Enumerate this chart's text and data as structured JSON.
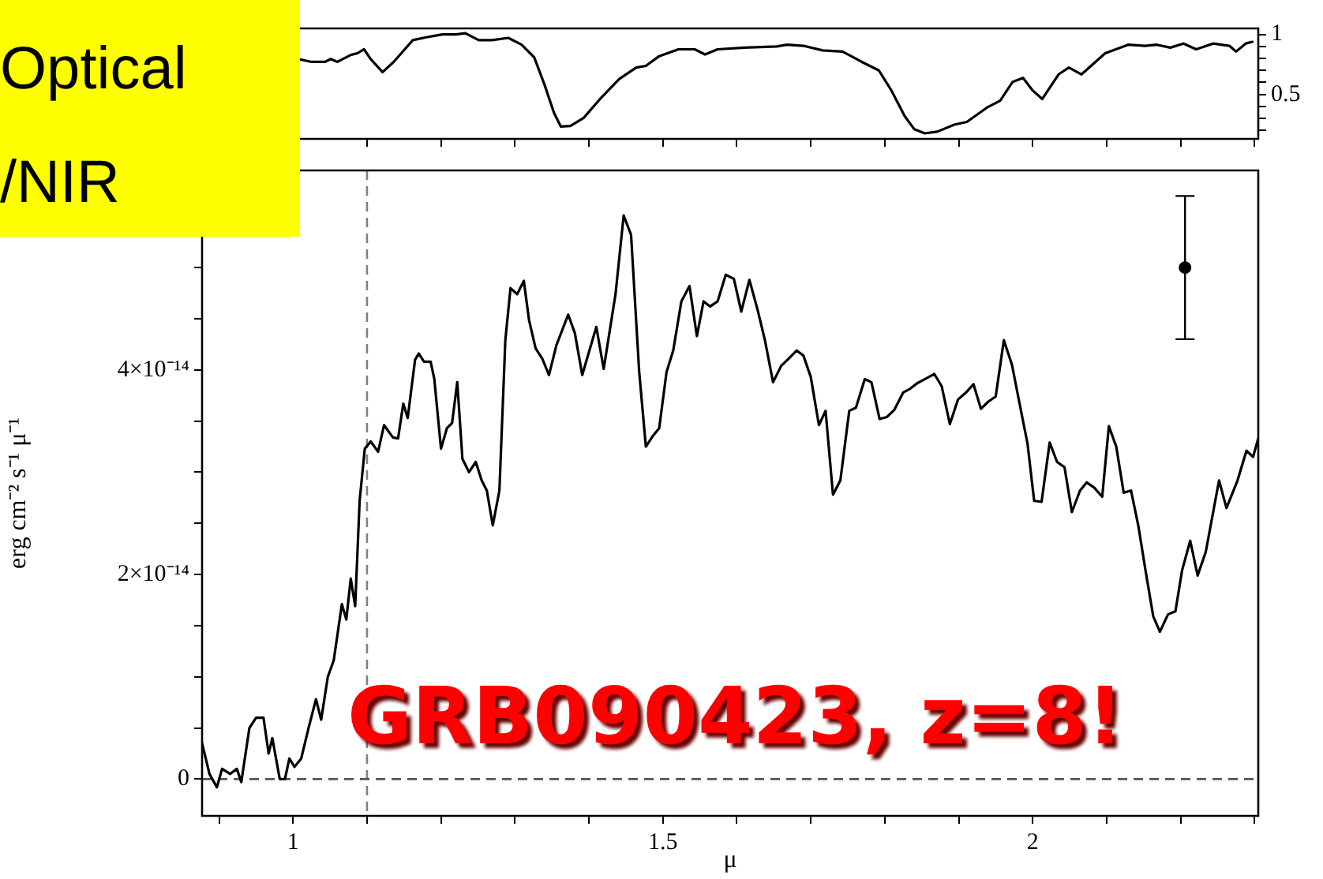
{
  "chart_data": [
    {
      "type": "line",
      "series": [
        {
          "color": "#000000",
          "axis": "y2",
          "x": [
            1.007,
            1.025,
            1.043,
            1.051,
            1.06,
            1.078,
            1.087,
            1.096,
            1.105,
            1.121,
            1.136,
            1.162,
            1.18,
            1.202,
            1.22,
            1.233,
            1.251,
            1.269,
            1.291,
            1.309,
            1.326,
            1.34,
            1.353,
            1.362,
            1.375,
            1.393,
            1.415,
            1.441,
            1.464,
            1.477,
            1.495,
            1.521,
            1.543,
            1.557,
            1.574,
            1.61,
            1.654,
            1.668,
            1.69,
            1.716,
            1.743,
            1.769,
            1.792,
            1.809,
            1.827,
            1.84,
            1.854,
            1.871,
            1.894,
            1.911,
            1.938,
            1.956,
            1.973,
            1.987,
            2.0,
            2.013,
            2.035,
            2.049,
            2.066,
            2.098,
            2.129,
            2.152,
            2.168,
            2.186,
            2.204,
            2.221,
            2.244,
            2.266,
            2.275,
            2.288,
            2.297
          ],
          "values": [
            0.795,
            0.771,
            0.771,
            0.795,
            0.771,
            0.829,
            0.843,
            0.876,
            0.795,
            0.686,
            0.771,
            0.952,
            0.976,
            1.0,
            1.0,
            1.01,
            0.952,
            0.952,
            0.971,
            0.914,
            0.81,
            0.581,
            0.343,
            0.233,
            0.238,
            0.305,
            0.462,
            0.629,
            0.724,
            0.738,
            0.819,
            0.876,
            0.876,
            0.833,
            0.876,
            0.89,
            0.9,
            0.914,
            0.905,
            0.867,
            0.857,
            0.771,
            0.7,
            0.533,
            0.319,
            0.21,
            0.176,
            0.19,
            0.248,
            0.271,
            0.39,
            0.448,
            0.605,
            0.638,
            0.533,
            0.462,
            0.667,
            0.724,
            0.667,
            0.843,
            0.914,
            0.905,
            0.914,
            0.89,
            0.924,
            0.876,
            0.924,
            0.905,
            0.857,
            0.924,
            0.938
          ]
        }
      ],
      "xlim": [
        0.877,
        2.305
      ],
      "xticks": [
        {
          "value": 0.9,
          "label": null
        },
        1,
        {
          "value": 1.1,
          "label": null
        },
        {
          "value": 1.2,
          "label": null
        },
        {
          "value": 1.3,
          "label": null
        },
        {
          "value": 1.4,
          "label": null
        },
        1.5,
        {
          "value": 1.6,
          "label": null
        },
        {
          "value": 1.7,
          "label": null
        },
        {
          "value": 1.8,
          "label": null
        },
        {
          "value": 1.9,
          "label": null
        },
        2,
        {
          "value": 2.1,
          "label": null
        },
        {
          "value": 2.2,
          "label": null
        },
        {
          "value": 2.3,
          "label": null
        }
      ],
      "y2lim": [
        0.13,
        1.05
      ],
      "y2ticks": [
        {
          "value": 0.2,
          "label": null
        },
        {
          "value": 0.3,
          "label": null
        },
        {
          "value": 0.4,
          "label": null
        },
        0.5,
        {
          "value": 0.6,
          "label": null
        },
        {
          "value": 0.7,
          "label": null
        },
        {
          "value": 0.8,
          "label": null
        },
        {
          "value": 0.9,
          "label": null
        },
        1
      ],
      "tick_labels": "y"
    },
    {
      "type": "line",
      "xlabel": "μ",
      "ylabel": "erg cm⁻² s⁻¹ μ⁻¹",
      "annotations": [
        "Optical /NIR",
        "GRB090423, z=8!"
      ],
      "series": [
        {
          "color": "#000000",
          "x": [
            0.877,
            0.887,
            0.897,
            0.904,
            0.915,
            0.924,
            0.93,
            0.941,
            0.95,
            0.96,
            0.967,
            0.972,
            0.982,
            0.989,
            0.995,
            1.002,
            1.011,
            1.021,
            1.031,
            1.038,
            1.047,
            1.055,
            1.066,
            1.072,
            1.078,
            1.084,
            1.09,
            1.097,
            1.105,
            1.115,
            1.123,
            1.135,
            1.142,
            1.149,
            1.155,
            1.165,
            1.17,
            1.177,
            1.186,
            1.191,
            1.2,
            1.208,
            1.215,
            1.222,
            1.229,
            1.238,
            1.247,
            1.255,
            1.262,
            1.27,
            1.279,
            1.287,
            1.294,
            1.303,
            1.312,
            1.319,
            1.328,
            1.337,
            1.346,
            1.356,
            1.372,
            1.381,
            1.391,
            1.41,
            1.42,
            1.436,
            1.447,
            1.457,
            1.468,
            1.477,
            1.486,
            1.495,
            1.505,
            1.514,
            1.525,
            1.536,
            1.546,
            1.555,
            1.564,
            1.574,
            1.585,
            1.596,
            1.606,
            1.617,
            1.628,
            1.638,
            1.649,
            1.66,
            1.67,
            1.681,
            1.69,
            1.7,
            1.711,
            1.72,
            1.73,
            1.74,
            1.752,
            1.761,
            1.773,
            1.782,
            1.793,
            1.803,
            1.813,
            1.825,
            1.833,
            1.844,
            1.857,
            1.867,
            1.877,
            1.888,
            1.899,
            1.91,
            1.92,
            1.93,
            1.94,
            1.95,
            1.961,
            1.972,
            1.982,
            1.993,
            2.002,
            2.012,
            2.023,
            2.033,
            2.043,
            2.053,
            2.064,
            2.073,
            2.083,
            2.094,
            2.103,
            2.113,
            2.123,
            2.133,
            2.143,
            2.153,
            2.163,
            2.172,
            2.183,
            2.193,
            2.202,
            2.213,
            2.223,
            2.234,
            2.252,
            2.262,
            2.277,
            2.289,
            2.298,
            2.305
          ],
          "values": [
            3.5e-15,
            5e-16,
            -8e-16,
            1e-15,
            5e-16,
            1e-15,
            -3e-16,
            5e-15,
            6e-15,
            6e-15,
            2.5e-15,
            4e-15,
            0,
            0,
            2e-15,
            1.2e-15,
            2e-15,
            5e-15,
            7.8e-15,
            5.8e-15,
            1e-14,
            1.16e-14,
            1.71e-14,
            1.56e-14,
            1.96e-14,
            1.69e-14,
            2.72e-14,
            3.23e-14,
            3.3e-14,
            3.2e-14,
            3.46e-14,
            3.34e-14,
            3.33e-14,
            3.67e-14,
            3.53e-14,
            4.1e-14,
            4.16e-14,
            4.08e-14,
            4.08e-14,
            3.91e-14,
            3.23e-14,
            3.43e-14,
            3.48e-14,
            3.88e-14,
            3.13e-14,
            3e-14,
            3.1e-14,
            2.92e-14,
            2.82e-14,
            2.48e-14,
            2.82e-14,
            4.29e-14,
            4.8e-14,
            4.74e-14,
            4.87e-14,
            4.49e-14,
            4.21e-14,
            4.11e-14,
            3.95e-14,
            4.24e-14,
            4.54e-14,
            4.36e-14,
            3.95e-14,
            4.42e-14,
            4.01e-14,
            4.74e-14,
            5.51e-14,
            5.32e-14,
            3.98e-14,
            3.25e-14,
            3.35e-14,
            3.43e-14,
            3.98e-14,
            4.19e-14,
            4.67e-14,
            4.82e-14,
            4.33e-14,
            4.67e-14,
            4.62e-14,
            4.67e-14,
            4.93e-14,
            4.89e-14,
            4.57e-14,
            4.88e-14,
            4.59e-14,
            4.29e-14,
            3.88e-14,
            4.04e-14,
            4.11e-14,
            4.19e-14,
            4.14e-14,
            3.93e-14,
            3.46e-14,
            3.6e-14,
            2.78e-14,
            2.92e-14,
            3.6e-14,
            3.63e-14,
            3.91e-14,
            3.88e-14,
            3.52e-14,
            3.54e-14,
            3.61e-14,
            3.78e-14,
            3.81e-14,
            3.87e-14,
            3.92e-14,
            3.96e-14,
            3.84e-14,
            3.47e-14,
            3.71e-14,
            3.78e-14,
            3.86e-14,
            3.62e-14,
            3.69e-14,
            3.74e-14,
            4.29e-14,
            4.05e-14,
            3.68e-14,
            3.28e-14,
            2.72e-14,
            2.71e-14,
            3.29e-14,
            3.1e-14,
            3.05e-14,
            2.61e-14,
            2.82e-14,
            2.9e-14,
            2.85e-14,
            2.76e-14,
            3.45e-14,
            3.25e-14,
            2.8e-14,
            2.82e-14,
            2.47e-14,
            2.02e-14,
            1.59e-14,
            1.44e-14,
            1.61e-14,
            1.64e-14,
            2.04e-14,
            2.33e-14,
            1.99e-14,
            2.22e-14,
            2.92e-14,
            2.65e-14,
            2.92e-14,
            3.21e-14,
            3.15e-14,
            3.33e-14
          ]
        },
        {
          "type": "scatter",
          "color": "#000000",
          "marker": "circle",
          "x": [
            2.206
          ],
          "values": [
            5e-14
          ],
          "errors": [
            7e-15
          ]
        }
      ],
      "ref_lines": [
        {
          "axis": "x",
          "value": 1.1,
          "color": "#808080",
          "line_style": "dashed"
        },
        {
          "axis": "y",
          "value": 0,
          "color": "#555555",
          "line_style": "dashed"
        }
      ],
      "xlim": [
        0.877,
        2.305
      ],
      "xticks": [
        {
          "value": 0.9,
          "label": null
        },
        1,
        {
          "value": 1.1,
          "label": null
        },
        {
          "value": 1.2,
          "label": null
        },
        {
          "value": 1.3,
          "label": null
        },
        {
          "value": 1.4,
          "label": null
        },
        1.5,
        {
          "value": 1.6,
          "label": null
        },
        {
          "value": 1.7,
          "label": null
        },
        {
          "value": 1.8,
          "label": null
        },
        {
          "value": 1.9,
          "label": null
        },
        2,
        {
          "value": 2.1,
          "label": null
        },
        {
          "value": 2.2,
          "label": null
        },
        {
          "value": 2.3,
          "label": null
        }
      ],
      "ylim": [
        -3.6e-15,
        5.95e-14
      ],
      "yticks": [
        0,
        {
          "value": 5e-15,
          "label": null
        },
        {
          "value": 1e-14,
          "label": null
        },
        {
          "value": 1.5e-14,
          "label": null
        },
        {
          "value": 2e-14,
          "label": "2×10⁻¹⁴"
        },
        {
          "value": 2.5e-14,
          "label": null
        },
        {
          "value": 3e-14,
          "label": null
        },
        {
          "value": 3.5e-14,
          "label": null
        },
        {
          "value": 4e-14,
          "label": "4×10⁻¹⁴"
        },
        {
          "value": 4.5e-14,
          "label": null
        },
        {
          "value": 5e-14,
          "label": null
        },
        {
          "value": 5.5e-14,
          "label": null
        }
      ]
    }
  ]
}
